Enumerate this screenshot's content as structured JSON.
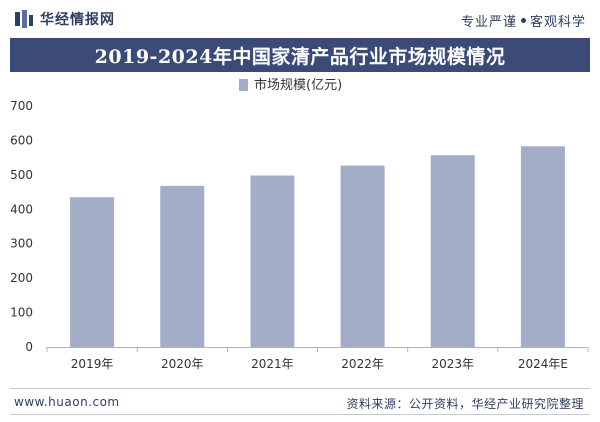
{
  "header": {
    "logo_text": "华经情报网",
    "slogan_left": "专业严谨",
    "slogan_right": "客观科学"
  },
  "colors": {
    "brand": "#2f3e63",
    "title_band": "#3c4a78",
    "bar": "#a3adc8"
  },
  "footer": {
    "website": "www.huaon.com",
    "source": "资料来源：公开资料，华经产业研究院整理"
  },
  "chart_data": {
    "type": "bar",
    "title": "2019-2024年中国家清产品行业市场规模情况",
    "categories": [
      "2019年",
      "2020年",
      "2021年",
      "2022年",
      "2023年",
      "2024年E"
    ],
    "series": [
      {
        "name": "市场规模(亿元)",
        "values": [
          435,
          468,
          498,
          527,
          557,
          583
        ]
      }
    ],
    "ylim": [
      0,
      700
    ],
    "yticks": [
      "0",
      "100",
      "200",
      "300",
      "400",
      "500",
      "600",
      "700"
    ],
    "legend": "top-center",
    "grid": false
  }
}
